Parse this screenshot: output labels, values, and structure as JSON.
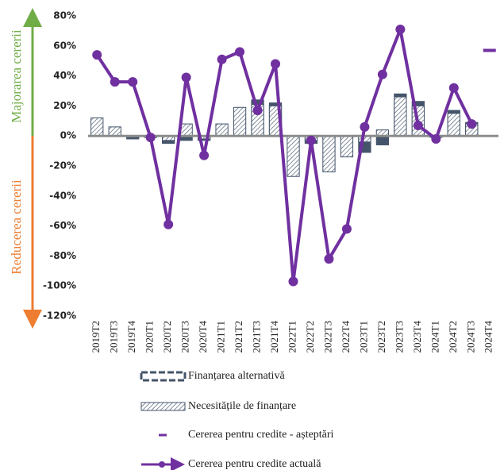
{
  "chart_data": {
    "type": "combo",
    "side_labels": {
      "up": "Majorarea cererii",
      "down": "Reducerea cererii"
    },
    "categories": [
      "2019T2",
      "2019T3",
      "2019T4",
      "2020T1",
      "2020T2",
      "2020T3",
      "2020T4",
      "2021T1",
      "2021T2",
      "2021T3",
      "2021T4",
      "2022T1",
      "2022T2",
      "2022T3",
      "2022T4",
      "2023T1",
      "2023T2",
      "2023T3",
      "2023T4",
      "2024T1",
      "2024T2",
      "2024T3",
      "2024T4"
    ],
    "series": [
      {
        "name": "Finanțarea alternativă",
        "kind": "bar",
        "color": "#44546a",
        "values": [
          0,
          0,
          -2,
          -1,
          -5,
          -3,
          -3,
          0,
          0,
          24,
          22,
          0,
          -5,
          -2,
          -2,
          -11,
          -6,
          28,
          23,
          -1,
          17,
          9,
          null
        ]
      },
      {
        "name": "Necesitățile de finanțare",
        "kind": "hatched",
        "color": "#44546a",
        "values": [
          12,
          6,
          -1,
          -1,
          -3,
          8,
          -2,
          8,
          19,
          21,
          20,
          -27,
          -3,
          -24,
          -14,
          -4,
          4,
          26,
          20,
          0,
          15,
          8,
          null
        ]
      },
      {
        "name": "Cererea pentru credite - așteptări",
        "kind": "dash",
        "color": "#7030a0",
        "values": [
          null,
          null,
          null,
          null,
          null,
          null,
          null,
          null,
          null,
          null,
          null,
          null,
          null,
          null,
          null,
          null,
          null,
          null,
          null,
          null,
          null,
          null,
          57
        ]
      },
      {
        "name": "Cererea pentru credite actuală",
        "kind": "line",
        "color": "#7030a0",
        "values": [
          54,
          36,
          36,
          -1,
          -59,
          39,
          -13,
          51,
          56,
          17,
          48,
          -97,
          -3,
          -82,
          -62,
          6,
          41,
          71,
          7,
          -2,
          32,
          8,
          null
        ]
      }
    ],
    "ylim": [
      -120,
      80
    ],
    "yticks": [
      {
        "value": -120,
        "label": "-120%"
      },
      {
        "value": -100,
        "label": "-100%"
      },
      {
        "value": -80,
        "label": "-80%"
      },
      {
        "value": -60,
        "label": "-60%"
      },
      {
        "value": -40,
        "label": "-40%"
      },
      {
        "value": -20,
        "label": "-20%"
      },
      {
        "value": 0,
        "label": "0%"
      },
      {
        "value": 20,
        "label": "20%"
      },
      {
        "value": 40,
        "label": "40%"
      },
      {
        "value": 60,
        "label": "60%"
      },
      {
        "value": 80,
        "label": "80%"
      }
    ]
  }
}
